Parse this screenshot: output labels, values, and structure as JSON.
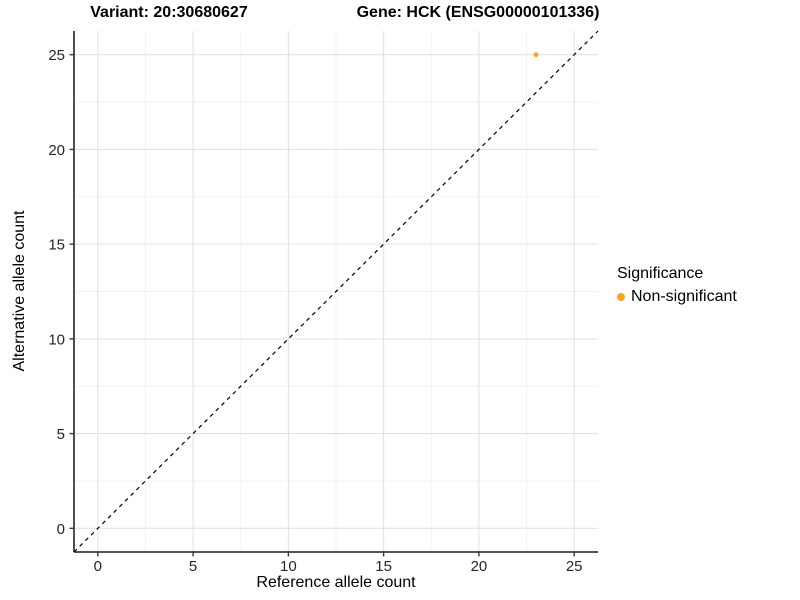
{
  "chart_data": {
    "type": "scatter",
    "title_left": "Variant: 20:30680627",
    "title_right": "Gene: HCK (ENSG00000101336)",
    "xlabel": "Reference allele count",
    "ylabel": "Alternative allele count",
    "xlim": [
      -1.25,
      26.25
    ],
    "ylim": [
      -1.25,
      26.25
    ],
    "x_ticks": [
      0,
      5,
      10,
      15,
      20,
      25
    ],
    "y_ticks": [
      0,
      5,
      10,
      15,
      20,
      25
    ],
    "x_minor_ticks": [
      2.5,
      7.5,
      12.5,
      17.5,
      22.5
    ],
    "y_minor_ticks": [
      2.5,
      7.5,
      12.5,
      17.5,
      22.5
    ],
    "grid": true,
    "reference_line": {
      "type": "abline",
      "slope": 1,
      "intercept": 0,
      "style": "dashed"
    },
    "series": [
      {
        "name": "Non-significant",
        "color": "#FFA321",
        "points": [
          {
            "x": 23,
            "y": 25
          }
        ]
      }
    ],
    "legend": {
      "title": "Significance",
      "position": "right",
      "entries": [
        {
          "label": "Non-significant",
          "color": "#FFA321"
        }
      ]
    }
  },
  "colors": {
    "background": "#FFFFFF",
    "grid_major": "#E2E2E2",
    "grid_minor": "#F1F1F1",
    "axis_line": "#3C3C3C",
    "tick_mark": "#3C3C3C",
    "tick_label": "#262626",
    "reference_line": "#000000",
    "point": "#FFA321",
    "text": "#000000"
  }
}
